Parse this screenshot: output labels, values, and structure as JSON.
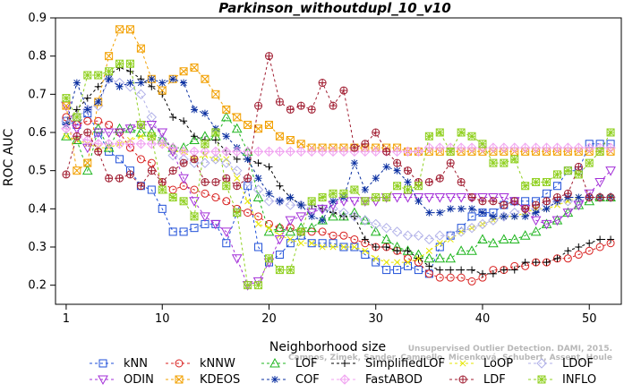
{
  "chart_data": {
    "type": "line",
    "title": "Parkinson_withoutdupl_10_v10",
    "xlabel": "Neighborhood size",
    "ylabel": "ROC AUC",
    "xlim": [
      0,
      53
    ],
    "ylim": [
      0.15,
      0.9
    ],
    "xticks": [
      "1",
      "10",
      "20",
      "30",
      "40",
      "50"
    ],
    "xtick_values": [
      1,
      10,
      20,
      30,
      40,
      50
    ],
    "yticks": [
      "0.2",
      "0.3",
      "0.4",
      "0.5",
      "0.6",
      "0.7",
      "0.8",
      "0.9"
    ],
    "ytick_values": [
      0.2,
      0.3,
      0.4,
      0.5,
      0.6,
      0.7,
      0.8,
      0.9
    ],
    "citation_line1": "Campos, Zimek, Sander, Campello, Micenková, Schubert, Assent, Houle",
    "citation_line2": "Unsupervised Outlier Detection. DAMI, 2015.",
    "legend_position": "bottom",
    "x": [
      1,
      2,
      3,
      4,
      5,
      6,
      7,
      8,
      9,
      10,
      11,
      12,
      13,
      14,
      15,
      16,
      17,
      18,
      19,
      20,
      21,
      22,
      23,
      24,
      25,
      26,
      27,
      28,
      29,
      30,
      31,
      32,
      33,
      34,
      35,
      36,
      37,
      38,
      39,
      40,
      41,
      42,
      43,
      44,
      45,
      46,
      47,
      48,
      49,
      50,
      51,
      52
    ],
    "series": [
      {
        "name": "kNN",
        "color": "#1f4fd8",
        "marker": "square",
        "values": [
          0.63,
          0.62,
          0.65,
          0.6,
          0.55,
          0.53,
          0.5,
          0.46,
          0.45,
          0.4,
          0.34,
          0.34,
          0.35,
          0.36,
          0.36,
          0.31,
          0.39,
          0.46,
          0.3,
          0.26,
          0.28,
          0.31,
          0.33,
          0.31,
          0.31,
          0.31,
          0.3,
          0.3,
          0.28,
          0.26,
          0.24,
          0.24,
          0.25,
          0.24,
          0.23,
          0.3,
          0.33,
          0.35,
          0.38,
          0.39,
          0.39,
          0.41,
          0.42,
          0.42,
          0.42,
          0.44,
          0.46,
          0.5,
          0.5,
          0.57,
          0.57,
          0.57
        ]
      },
      {
        "name": "kNNW",
        "color": "#d8201f",
        "marker": "circle",
        "values": [
          0.64,
          0.62,
          0.63,
          0.63,
          0.62,
          0.6,
          0.56,
          0.53,
          0.52,
          0.47,
          0.45,
          0.46,
          0.45,
          0.44,
          0.43,
          0.42,
          0.4,
          0.39,
          0.38,
          0.36,
          0.35,
          0.35,
          0.34,
          0.34,
          0.34,
          0.33,
          0.33,
          0.32,
          0.31,
          0.3,
          0.3,
          0.29,
          0.27,
          0.26,
          0.23,
          0.22,
          0.22,
          0.22,
          0.21,
          0.22,
          0.24,
          0.24,
          0.25,
          0.25,
          0.26,
          0.26,
          0.27,
          0.27,
          0.28,
          0.29,
          0.3,
          0.31
        ]
      },
      {
        "name": "LOF",
        "color": "#1fb51f",
        "marker": "triangle-up",
        "values": [
          0.59,
          0.58,
          0.5,
          0.61,
          0.56,
          0.61,
          0.61,
          0.6,
          0.6,
          0.58,
          0.56,
          0.56,
          0.58,
          0.59,
          0.59,
          0.64,
          0.61,
          0.55,
          0.43,
          0.34,
          0.35,
          0.34,
          0.35,
          0.35,
          0.37,
          0.38,
          0.38,
          0.39,
          0.37,
          0.34,
          0.32,
          0.3,
          0.29,
          0.28,
          0.27,
          0.27,
          0.27,
          0.29,
          0.29,
          0.32,
          0.31,
          0.32,
          0.32,
          0.33,
          0.34,
          0.36,
          0.37,
          0.39,
          0.41,
          0.42,
          0.43,
          0.43
        ]
      },
      {
        "name": "SimplifiedLOF",
        "color": "#000000",
        "marker": "plus",
        "values": [
          0.62,
          0.66,
          0.69,
          0.72,
          0.75,
          0.77,
          0.76,
          0.74,
          0.72,
          0.7,
          0.64,
          0.63,
          0.59,
          0.58,
          0.58,
          0.55,
          0.53,
          0.53,
          0.52,
          0.51,
          0.46,
          0.43,
          0.41,
          0.41,
          0.4,
          0.39,
          0.38,
          0.38,
          0.32,
          0.3,
          0.3,
          0.29,
          0.29,
          0.27,
          0.25,
          0.24,
          0.24,
          0.24,
          0.24,
          0.23,
          0.23,
          0.24,
          0.24,
          0.26,
          0.26,
          0.26,
          0.27,
          0.29,
          0.3,
          0.31,
          0.32,
          0.32
        ]
      },
      {
        "name": "LoOP",
        "color": "#e6e600",
        "marker": "x",
        "values": [
          0.59,
          0.58,
          0.57,
          0.56,
          0.56,
          0.57,
          0.58,
          0.59,
          0.59,
          0.57,
          0.55,
          0.55,
          0.53,
          0.54,
          0.53,
          0.53,
          0.48,
          0.42,
          0.36,
          0.35,
          0.33,
          0.32,
          0.31,
          0.31,
          0.3,
          0.3,
          0.3,
          0.3,
          0.29,
          0.27,
          0.26,
          0.26,
          0.26,
          0.27,
          0.29,
          0.31,
          0.32,
          0.34,
          0.35,
          0.36,
          0.37,
          0.38,
          0.38,
          0.39,
          0.4,
          0.4,
          0.41,
          0.42,
          0.43,
          0.43,
          0.43,
          0.43
        ]
      },
      {
        "name": "LDOF",
        "color": "#b0b0e8",
        "marker": "diamond",
        "values": [
          0.63,
          0.64,
          0.66,
          0.67,
          0.74,
          0.73,
          0.72,
          0.7,
          0.64,
          0.58,
          0.54,
          0.53,
          0.52,
          0.52,
          0.53,
          0.52,
          0.5,
          0.47,
          0.45,
          0.42,
          0.42,
          0.41,
          0.41,
          0.4,
          0.4,
          0.4,
          0.39,
          0.38,
          0.37,
          0.36,
          0.35,
          0.34,
          0.33,
          0.33,
          0.32,
          0.33,
          0.33,
          0.34,
          0.35,
          0.36,
          0.37,
          0.38,
          0.39,
          0.4,
          0.4,
          0.41,
          0.42,
          0.42,
          0.42,
          0.43,
          0.43,
          0.43
        ]
      },
      {
        "name": "ODIN",
        "color": "#a32fd8",
        "marker": "triangle-down",
        "values": [
          0.67,
          0.61,
          0.56,
          0.6,
          0.6,
          0.6,
          0.61,
          0.62,
          0.62,
          0.6,
          0.55,
          0.48,
          0.42,
          0.38,
          0.36,
          0.34,
          0.27,
          0.2,
          0.21,
          0.26,
          0.32,
          0.37,
          0.38,
          0.39,
          0.4,
          0.41,
          0.42,
          0.42,
          0.42,
          0.42,
          0.43,
          0.43,
          0.43,
          0.43,
          0.43,
          0.43,
          0.43,
          0.43,
          0.43,
          0.43,
          0.43,
          0.43,
          0.42,
          0.4,
          0.37,
          0.36,
          0.37,
          0.39,
          0.41,
          0.44,
          0.47,
          0.5
        ]
      },
      {
        "name": "KDEOS",
        "color": "#f2a000",
        "marker": "square-x",
        "values": [
          0.67,
          0.5,
          0.52,
          0.68,
          0.8,
          0.87,
          0.87,
          0.82,
          0.74,
          0.71,
          0.74,
          0.76,
          0.77,
          0.74,
          0.7,
          0.66,
          0.64,
          0.62,
          0.61,
          0.62,
          0.59,
          0.58,
          0.57,
          0.56,
          0.56,
          0.56,
          0.56,
          0.56,
          0.56,
          0.56,
          0.56,
          0.56,
          0.55,
          0.55,
          0.55,
          0.55,
          0.55,
          0.55,
          0.55,
          0.55,
          0.55,
          0.55,
          0.55,
          0.55,
          0.55,
          0.55,
          0.55,
          0.55,
          0.55,
          0.55,
          0.55,
          0.55
        ]
      },
      {
        "name": "COF",
        "color": "#0a2fa0",
        "marker": "asterisk",
        "values": [
          0.62,
          0.73,
          0.66,
          0.68,
          0.74,
          0.72,
          0.73,
          0.73,
          0.74,
          0.73,
          0.74,
          0.73,
          0.66,
          0.65,
          0.61,
          0.59,
          0.56,
          0.53,
          0.48,
          0.44,
          0.42,
          0.43,
          0.41,
          0.38,
          0.37,
          0.42,
          0.43,
          0.52,
          0.45,
          0.48,
          0.51,
          0.5,
          0.47,
          0.42,
          0.39,
          0.39,
          0.4,
          0.4,
          0.4,
          0.39,
          0.38,
          0.38,
          0.38,
          0.38,
          0.39,
          0.4,
          0.42,
          0.43,
          0.43,
          0.43,
          0.43,
          0.43
        ]
      },
      {
        "name": "FastABOD",
        "color": "#f0a0f0",
        "marker": "diamond-plus",
        "values": [
          0.61,
          0.59,
          0.58,
          0.57,
          0.57,
          0.57,
          0.57,
          0.57,
          0.57,
          0.57,
          0.56,
          0.55,
          0.55,
          0.55,
          0.55,
          0.55,
          0.55,
          0.55,
          0.55,
          0.55,
          0.55,
          0.55,
          0.55,
          0.55,
          0.55,
          0.55,
          0.55,
          0.55,
          0.55,
          0.55,
          0.55,
          0.55,
          0.55,
          0.55,
          0.56,
          0.56,
          0.56,
          0.56,
          0.56,
          0.56,
          0.56,
          0.56,
          0.56,
          0.56,
          0.56,
          0.56,
          0.56,
          0.56,
          0.56,
          0.56,
          0.56,
          0.56
        ]
      },
      {
        "name": "LDF",
        "color": "#a01c30",
        "marker": "circle-plus",
        "values": [
          0.49,
          0.59,
          0.6,
          0.55,
          0.48,
          0.48,
          0.49,
          0.46,
          0.5,
          0.47,
          0.5,
          0.52,
          0.53,
          0.47,
          0.47,
          0.48,
          0.46,
          0.48,
          0.67,
          0.8,
          0.68,
          0.66,
          0.67,
          0.66,
          0.73,
          0.67,
          0.71,
          0.56,
          0.57,
          0.6,
          0.55,
          0.52,
          0.5,
          0.47,
          0.47,
          0.48,
          0.52,
          0.47,
          0.43,
          0.42,
          0.42,
          0.41,
          0.42,
          0.4,
          0.41,
          0.42,
          0.43,
          0.44,
          0.51,
          0.43,
          0.43,
          0.43
        ]
      },
      {
        "name": "INFLO",
        "color": "#90d020",
        "marker": "square-star",
        "values": [
          0.69,
          0.64,
          0.75,
          0.75,
          0.76,
          0.78,
          0.78,
          0.62,
          0.59,
          0.45,
          0.43,
          0.42,
          0.38,
          0.57,
          0.6,
          0.46,
          0.39,
          0.2,
          0.2,
          0.27,
          0.24,
          0.24,
          0.34,
          0.42,
          0.43,
          0.44,
          0.44,
          0.45,
          0.42,
          0.43,
          0.43,
          0.46,
          0.45,
          0.46,
          0.59,
          0.6,
          0.55,
          0.6,
          0.59,
          0.57,
          0.52,
          0.52,
          0.53,
          0.46,
          0.47,
          0.47,
          0.49,
          0.5,
          0.49,
          0.52,
          0.55,
          0.6
        ]
      }
    ]
  }
}
